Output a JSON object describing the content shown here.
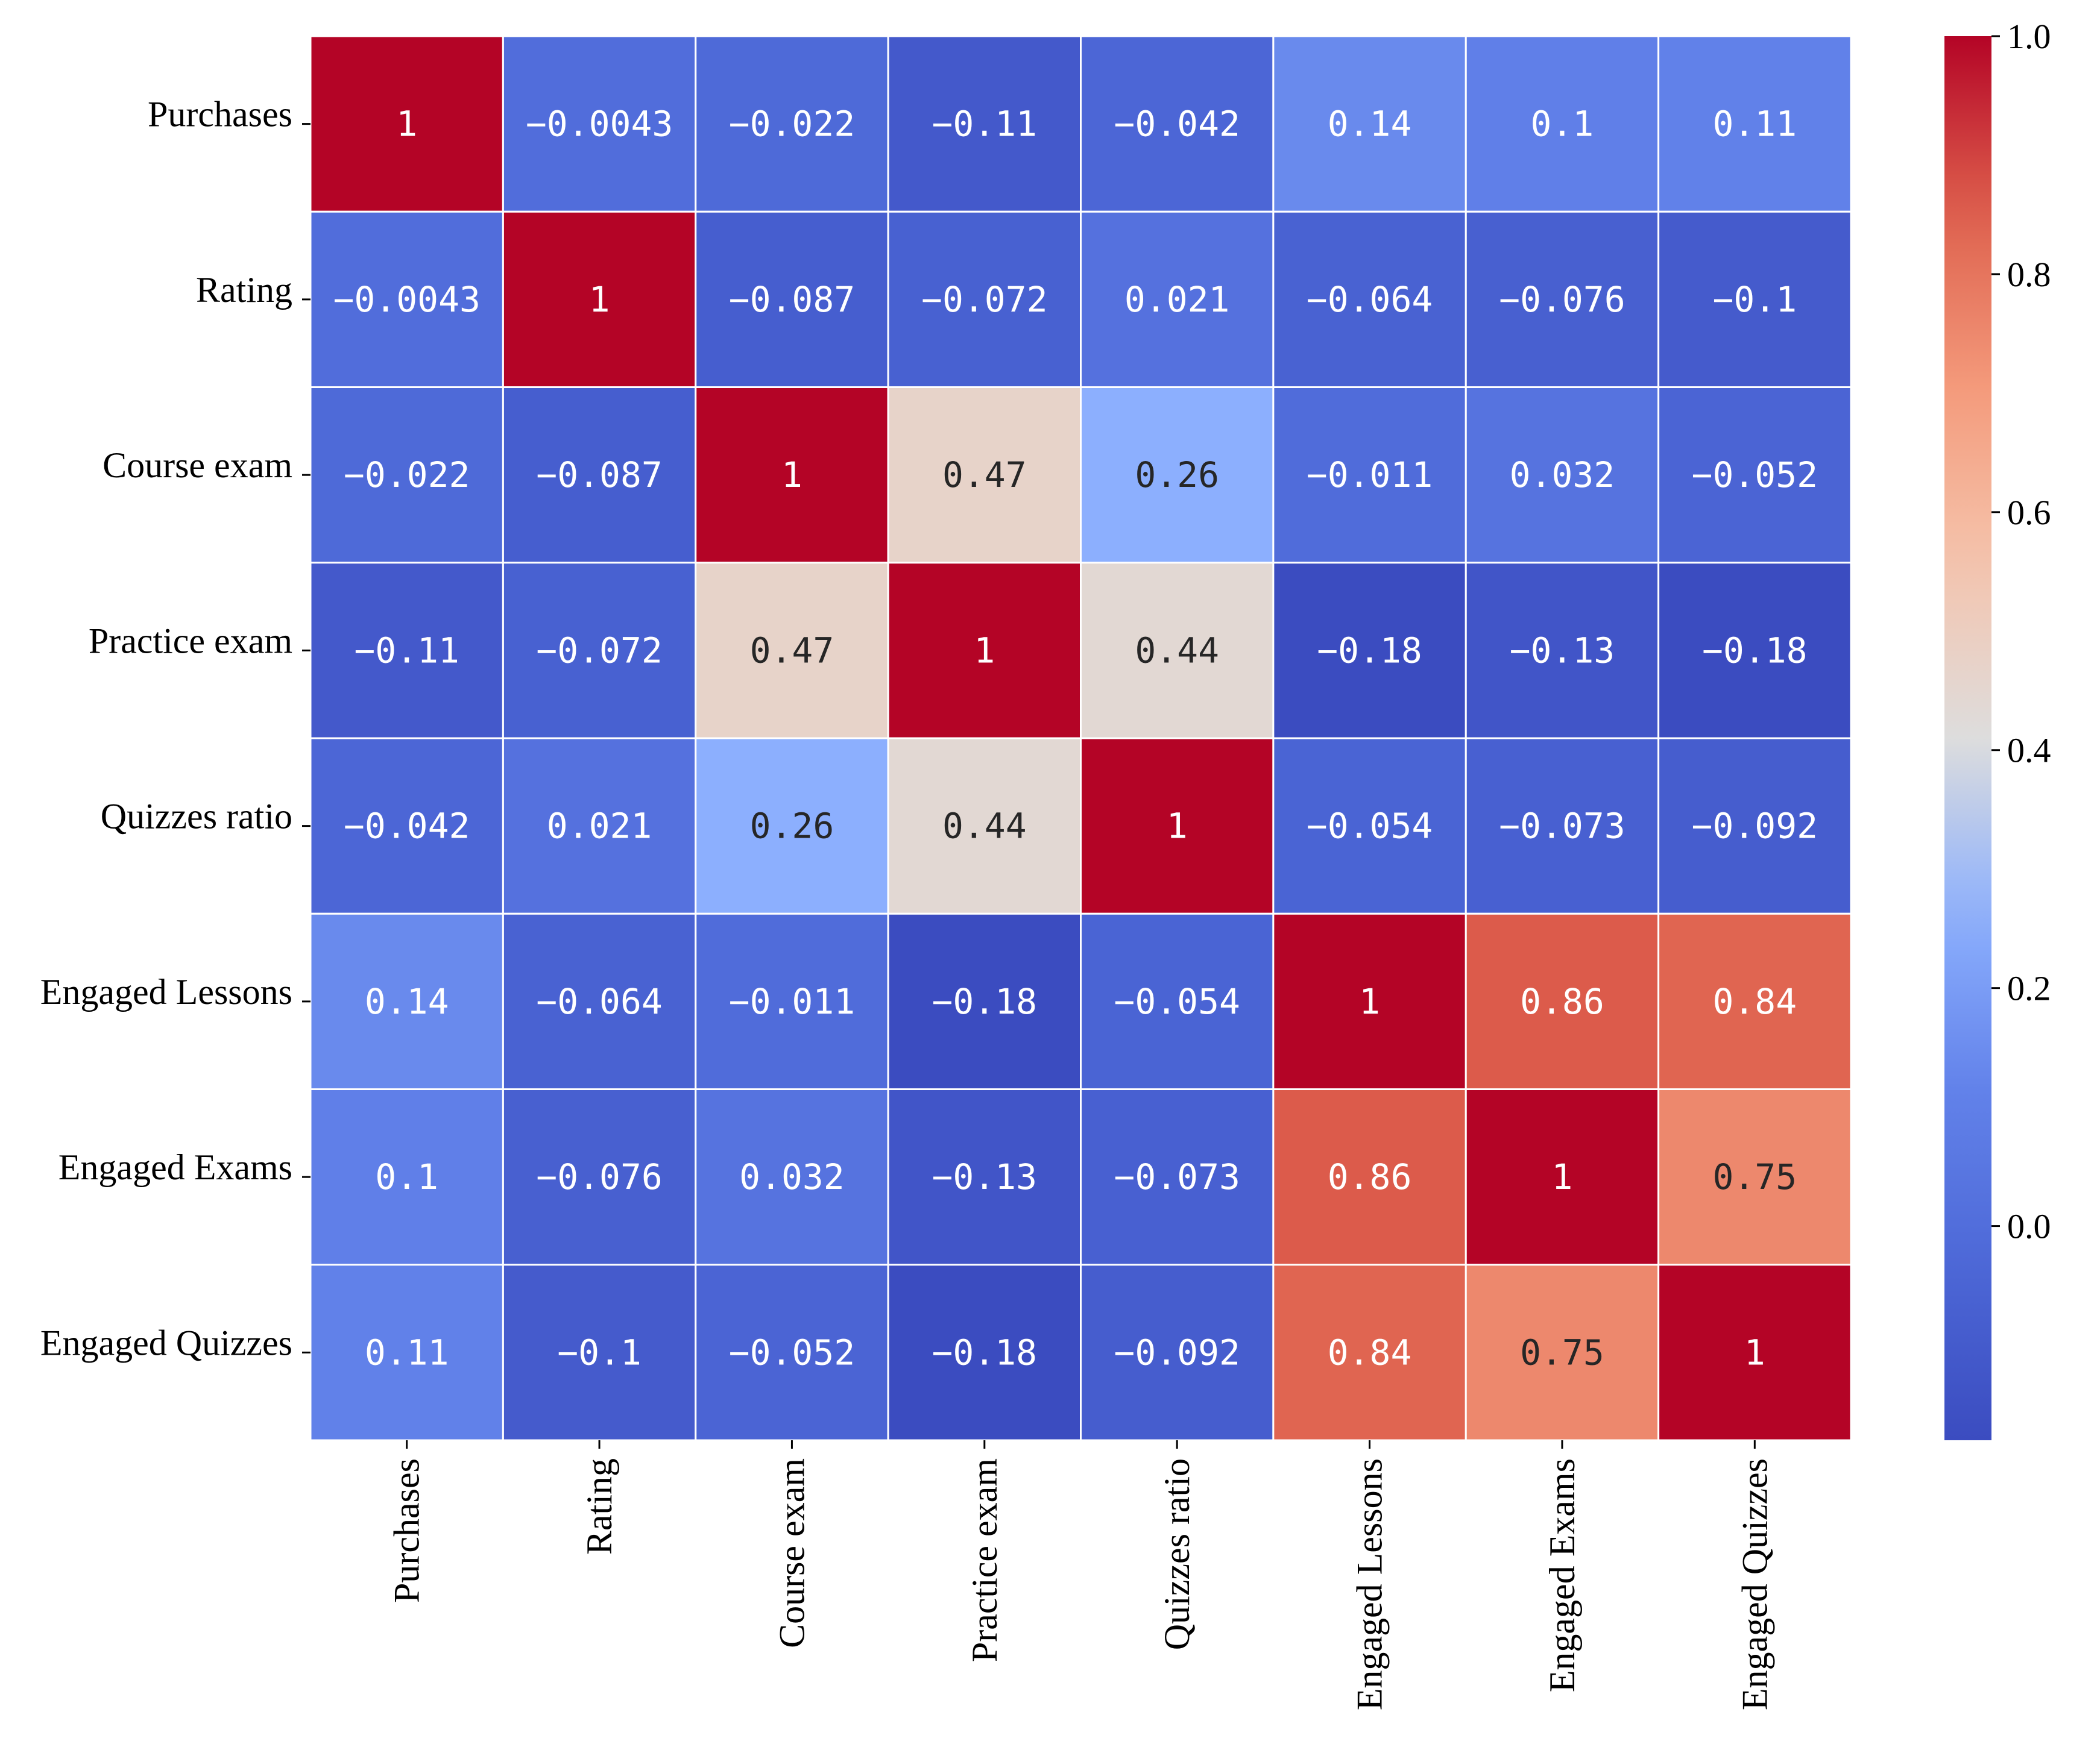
{
  "chart_data": {
    "type": "heatmap",
    "title": "",
    "xlabel": "",
    "ylabel": "",
    "colormap": "coolwarm",
    "value_range": [
      -0.18,
      1.0
    ],
    "row_labels": [
      "Purchases",
      "Rating",
      "Course exam",
      "Practice exam",
      "Quizzes ratio",
      "Engaged Lessons",
      "Engaged Exams",
      "Engaged Quizzes"
    ],
    "col_labels": [
      "Purchases",
      "Rating",
      "Course exam",
      "Practice exam",
      "Quizzes ratio",
      "Engaged Lessons",
      "Engaged Exams",
      "Engaged Quizzes"
    ],
    "values": [
      [
        1,
        -0.0043,
        -0.022,
        -0.11,
        -0.042,
        0.14,
        0.1,
        0.11
      ],
      [
        -0.0043,
        1,
        -0.087,
        -0.072,
        0.021,
        -0.064,
        -0.076,
        -0.1
      ],
      [
        -0.022,
        -0.087,
        1,
        0.47,
        0.26,
        -0.011,
        0.032,
        -0.052
      ],
      [
        -0.11,
        -0.072,
        0.47,
        1,
        0.44,
        -0.18,
        -0.13,
        -0.18
      ],
      [
        -0.042,
        0.021,
        0.26,
        0.44,
        1,
        -0.054,
        -0.073,
        -0.092
      ],
      [
        0.14,
        -0.064,
        -0.011,
        -0.18,
        -0.054,
        1,
        0.86,
        0.84
      ],
      [
        0.1,
        -0.076,
        0.032,
        -0.13,
        -0.073,
        0.86,
        1,
        0.75
      ],
      [
        0.11,
        -0.1,
        -0.052,
        -0.18,
        -0.092,
        0.84,
        0.75,
        1
      ]
    ],
    "cell_text": [
      [
        "1",
        "−0.0043",
        "−0.022",
        "−0.11",
        "−0.042",
        "0.14",
        "0.1",
        "0.11"
      ],
      [
        "−0.0043",
        "1",
        "−0.087",
        "−0.072",
        "0.021",
        "−0.064",
        "−0.076",
        "−0.1"
      ],
      [
        "−0.022",
        "−0.087",
        "1",
        "0.47",
        "0.26",
        "−0.011",
        "0.032",
        "−0.052"
      ],
      [
        "−0.11",
        "−0.072",
        "0.47",
        "1",
        "0.44",
        "−0.18",
        "−0.13",
        "−0.18"
      ],
      [
        "−0.042",
        "0.021",
        "0.26",
        "0.44",
        "1",
        "−0.054",
        "−0.073",
        "−0.092"
      ],
      [
        "0.14",
        "−0.064",
        "−0.011",
        "−0.18",
        "−0.054",
        "1",
        "0.86",
        "0.84"
      ],
      [
        "0.1",
        "−0.076",
        "0.032",
        "−0.13",
        "−0.073",
        "0.86",
        "1",
        "0.75"
      ],
      [
        "0.11",
        "−0.1",
        "−0.052",
        "−0.18",
        "−0.092",
        "0.84",
        "0.75",
        "1"
      ]
    ],
    "colorbar": {
      "ticks": [
        0.0,
        0.2,
        0.4,
        0.6,
        0.8,
        1.0
      ],
      "tick_labels": [
        "0.0",
        "0.2",
        "0.4",
        "0.6",
        "0.8",
        "1.0"
      ]
    }
  }
}
